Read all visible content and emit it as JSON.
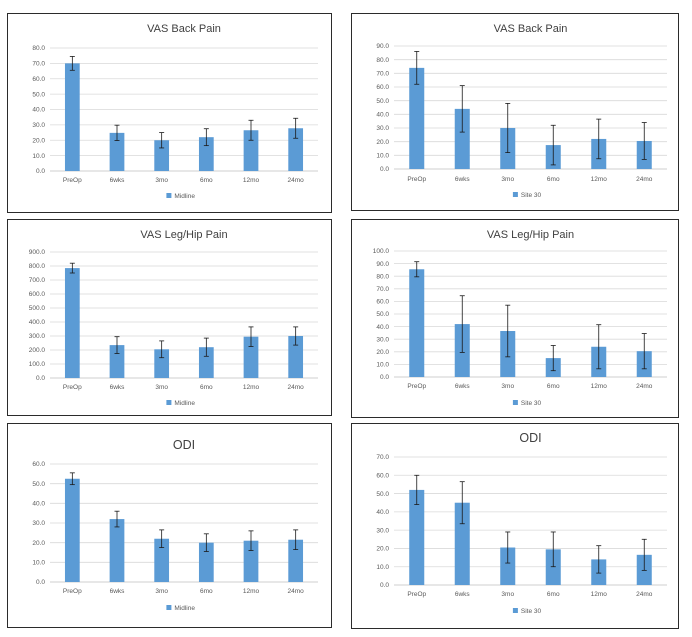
{
  "chart_data": [
    {
      "type": "bar",
      "title": "VAS Back Pain",
      "categories": [
        "PreOp",
        "6wks",
        "3mo",
        "6mo",
        "12mo",
        "24mo"
      ],
      "series": [
        {
          "name": "Midline",
          "values": [
            70.0,
            24.8,
            20.0,
            22.0,
            26.5,
            27.8
          ]
        }
      ],
      "errors": [
        4.5,
        5.0,
        5.0,
        5.5,
        6.5,
        6.5
      ],
      "ylim": [
        0,
        80
      ],
      "ystep": 10,
      "tick_decimals": 1,
      "grid": true,
      "legend": "bottom",
      "color": "#5b9bd5"
    },
    {
      "type": "bar",
      "title": "VAS Back Pain",
      "categories": [
        "PreOp",
        "6wks",
        "3mo",
        "6mo",
        "12mo",
        "24mo"
      ],
      "series": [
        {
          "name": "Site 30",
          "values": [
            74.0,
            44.0,
            30.0,
            17.5,
            22.0,
            20.5
          ]
        }
      ],
      "errors": [
        12.0,
        17.0,
        18.0,
        14.5,
        14.5,
        13.5
      ],
      "ylim": [
        0,
        90
      ],
      "ystep": 10,
      "tick_decimals": 1,
      "grid": true,
      "legend": "bottom",
      "color": "#5b9bd5"
    },
    {
      "type": "bar",
      "title": "VAS Leg/Hip Pain",
      "categories": [
        "PreOp",
        "6wks",
        "3mo",
        "6mo",
        "12mo",
        "24mo"
      ],
      "series": [
        {
          "name": "Midline",
          "values": [
            785,
            235,
            205,
            220,
            295,
            300
          ]
        }
      ],
      "errors": [
        35,
        60,
        60,
        65,
        70,
        65
      ],
      "ylim": [
        0,
        900
      ],
      "ystep": 100,
      "tick_decimals": 1,
      "grid": true,
      "legend": "bottom",
      "color": "#5b9bd5"
    },
    {
      "type": "bar",
      "title": "VAS Leg/Hip Pain",
      "categories": [
        "PreOp",
        "6wks",
        "3mo",
        "6mo",
        "12mo",
        "24mo"
      ],
      "series": [
        {
          "name": "Site 30",
          "values": [
            85.5,
            42.0,
            36.5,
            15.0,
            24.0,
            20.5
          ]
        }
      ],
      "errors": [
        6.0,
        22.5,
        20.5,
        10.0,
        17.5,
        14.0
      ],
      "ylim": [
        0,
        100
      ],
      "ystep": 10,
      "tick_decimals": 1,
      "grid": true,
      "legend": "bottom",
      "color": "#5b9bd5"
    },
    {
      "type": "bar",
      "title": "ODI",
      "categories": [
        "PreOp",
        "6wks",
        "3mo",
        "6mo",
        "12mo",
        "24mo"
      ],
      "series": [
        {
          "name": "Midline",
          "values": [
            52.5,
            32.0,
            22.0,
            20.0,
            21.0,
            21.5
          ]
        }
      ],
      "errors": [
        3.0,
        4.0,
        4.5,
        4.5,
        5.0,
        5.0
      ],
      "ylim": [
        0,
        60
      ],
      "ystep": 10,
      "tick_decimals": 1,
      "grid": true,
      "legend": "bottom",
      "color": "#5b9bd5"
    },
    {
      "type": "bar",
      "title": "ODI",
      "categories": [
        "PreOp",
        "6wks",
        "3mo",
        "6mo",
        "12mo",
        "24mo"
      ],
      "series": [
        {
          "name": "Site 30",
          "values": [
            52.0,
            45.0,
            20.5,
            19.5,
            14.0,
            16.5
          ]
        }
      ],
      "errors": [
        8.0,
        11.5,
        8.5,
        9.5,
        7.5,
        8.5
      ],
      "ylim": [
        0,
        70
      ],
      "ystep": 10,
      "tick_decimals": 1,
      "grid": true,
      "legend": "bottom",
      "color": "#5b9bd5"
    }
  ]
}
